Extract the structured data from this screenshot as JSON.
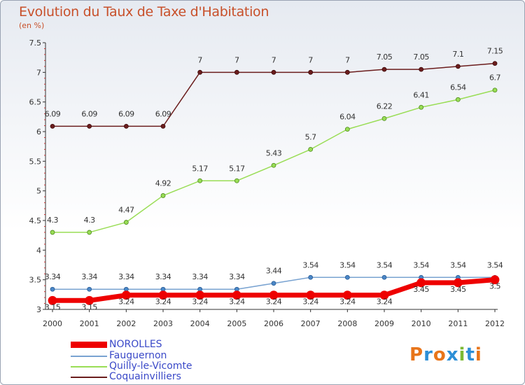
{
  "title": "Evolution du Taux de Taxe d'Habitation",
  "unit_label": "(en %)",
  "colors": {
    "norolles": "#ee0000",
    "fauguernon": "#79a3d1",
    "quilly": "#99dd55",
    "coquainvilliers": "#6b1d1d",
    "axis": "#333333",
    "label": "#333333"
  },
  "logo": {
    "letters": [
      "P",
      "r",
      "o",
      "x",
      "i",
      "t",
      "i"
    ],
    "colors": [
      "#e8751a",
      "#2d8fd6",
      "#e8751a",
      "#2d8fd6",
      "#7cba34",
      "#2d8fd6",
      "#e8751a"
    ]
  },
  "chart_data": {
    "type": "line",
    "title": "Evolution du Taux de Taxe d'Habitation",
    "ylabel": "(en %)",
    "x": [
      "2000",
      "2001",
      "2002",
      "2003",
      "2004",
      "2005",
      "2006",
      "2007",
      "2008",
      "2009",
      "2010",
      "2011",
      "2012"
    ],
    "ylim": [
      3,
      7.5
    ],
    "yticks": [
      "3",
      "3.5",
      "4",
      "4.5",
      "5",
      "5.5",
      "6",
      "6.5",
      "7",
      "7.5"
    ],
    "legend_position": "bottom-left",
    "series": [
      {
        "key": "norolles",
        "name": "NOROLLES",
        "values": [
          3.15,
          3.15,
          3.24,
          3.24,
          3.24,
          3.24,
          3.24,
          3.24,
          3.24,
          3.24,
          3.45,
          3.45,
          3.5
        ],
        "labels": [
          "3.15",
          "3.15",
          "3.24",
          "3.24",
          "3.24",
          "3.24",
          "3.24",
          "3.24",
          "3.24",
          "3.24",
          "3.45",
          "3.45",
          "3.5"
        ]
      },
      {
        "key": "fauguernon",
        "name": "Fauguernon",
        "values": [
          3.34,
          3.34,
          3.34,
          3.34,
          3.34,
          3.34,
          3.44,
          3.54,
          3.54,
          3.54,
          3.54,
          3.54,
          3.54
        ],
        "labels": [
          "3.34",
          "3.34",
          "3.34",
          "3.34",
          "3.34",
          "3.34",
          "3.44",
          "3.54",
          "3.54",
          "3.54",
          "3.54",
          "3.54",
          "3.54"
        ]
      },
      {
        "key": "quilly",
        "name": "Quilly-le-Vicomte",
        "values": [
          4.3,
          4.3,
          4.47,
          4.92,
          5.17,
          5.17,
          5.43,
          5.7,
          6.04,
          6.22,
          6.41,
          6.54,
          6.7
        ],
        "labels": [
          "4.3",
          "4.3",
          "4.47",
          "4.92",
          "5.17",
          "5.17",
          "5.43",
          "5.7",
          "6.04",
          "6.22",
          "6.41",
          "6.54",
          "6.7"
        ]
      },
      {
        "key": "coquainvilliers",
        "name": "Coquainvilliers",
        "values": [
          6.09,
          6.09,
          6.09,
          6.09,
          7,
          7,
          7,
          7,
          7,
          7.05,
          7.05,
          7.1,
          7.15
        ],
        "labels": [
          "6.09",
          "6.09",
          "6.09",
          "6.09",
          "7",
          "7",
          "7",
          "7",
          "7",
          "7.05",
          "7.05",
          "7.1",
          "7.15"
        ]
      }
    ]
  }
}
